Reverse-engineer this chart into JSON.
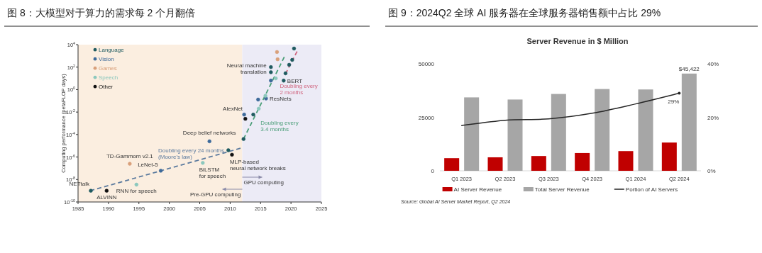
{
  "chart_data": [
    {
      "type": "scatter",
      "title": "图 8：大模型对于算力的需求每 2 个月翻倍",
      "ylabel": "Computing performance (petaFLOP days)",
      "log": "y",
      "legend": "top left",
      "marker": "circle",
      "xlim": [
        1985,
        2025
      ],
      "xticks": [
        1985,
        1990,
        1995,
        2000,
        2005,
        2010,
        2015,
        2020,
        2025
      ],
      "ylim": [
        1e-10,
        10000
      ],
      "yticks": [
        {
          "value": 1e-10,
          "label": "10$^{-10}$"
        },
        {
          "value": 1e-08,
          "label": "10$^{-8}$"
        },
        {
          "value": 1e-06,
          "label": "10$^{-6}$"
        },
        {
          "value": 0.0001,
          "label": "10$^{-4}$"
        },
        {
          "value": 0.01,
          "label": "10$^{-2}$"
        },
        {
          "value": 1,
          "label": "10$^{0}$"
        },
        {
          "value": 100,
          "label": "10$^{2}$"
        },
        {
          "value": 10000,
          "label": "10$^{4}$"
        }
      ],
      "bands": [
        {
          "axis": "x",
          "from": 1985,
          "to": 2012,
          "label": "Pre-GPU computing",
          "color": "#fbeee0"
        },
        {
          "axis": "x",
          "from": 2012,
          "to": 2025,
          "label": "GPU computing",
          "color": "#ecebf6"
        }
      ],
      "series": [
        {
          "name": "Language",
          "color": "#1f5a5f",
          "x": [
            1987.1,
            2009.7,
            2012.2,
            2013.8,
            2016.7,
            2016.7,
            2020.5,
            2020.2,
            2019.7,
            2019.1,
            2018.8
          ],
          "values": [
            1e-09,
            4e-06,
            4e-05,
            0.006,
            100,
            35,
            4500,
            440,
            160,
            28,
            6.3
          ]
        },
        {
          "name": "Vision",
          "color": "#3d6a9a",
          "x": [
            1998.6,
            2006.6,
            2012.3,
            2014.6,
            2015.9,
            2016.7
          ],
          "values": [
            6e-08,
            2.5e-05,
            0.006,
            0.13,
            0.16,
            6.3
          ]
        },
        {
          "name": "Games",
          "color": "#d9a07a",
          "x": [
            1993.5,
            2017.8,
            2017.7
          ],
          "values": [
            2.5e-07,
            500,
            2200
          ]
        },
        {
          "name": "Speech",
          "color": "#8cc8bd",
          "x": [
            1994.6,
            2005.5,
            2014.7,
            2015.8,
            2017.5
          ],
          "values": [
            3.5e-09,
            3e-07,
            0.02,
            0.28,
            10
          ]
        },
        {
          "name": "Other",
          "color": "#111111",
          "x": [
            1989.7,
            2010.3,
            2012.5
          ],
          "values": [
            1e-09,
            1.6e-06,
            0.0025
          ]
        },
        {
          "name": "Doubling every 24 months (Moore's law)",
          "type": "line",
          "line_style": "dashed",
          "marker": "none",
          "color": "#5b7a9e",
          "x": [
            1987,
            2011.7
          ],
          "values": [
            1e-09,
            6e-06
          ]
        },
        {
          "name": "Doubling every 3.4 months",
          "type": "line",
          "line_style": "dashed",
          "marker": "none",
          "color": "#4a9e78",
          "x": [
            2012.2,
            2018.9
          ],
          "values": [
            4e-05,
            800
          ]
        },
        {
          "name": "Doubling every 2 months",
          "type": "line",
          "line_style": "dashed",
          "marker": "none",
          "color": "#d0647e",
          "x": [
            2019.1,
            2021
          ],
          "values": [
            25,
            2500
          ]
        }
      ],
      "annotations": [
        {
          "text": "NETtalk",
          "x": 1987.1,
          "y": 1e-09
        },
        {
          "text": "ALVINN",
          "x": 1989.7,
          "y": 1e-09
        },
        {
          "text": "RNN for speech",
          "x": 1994.6,
          "y": 3.5e-09
        },
        {
          "text": "TD-Gammom v2.1",
          "x": 1993.5,
          "y": 2.5e-07
        },
        {
          "text": "LeNet-5",
          "x": 1998.6,
          "y": 6e-08
        },
        {
          "text": "Deep belief networks",
          "x": 2006.6,
          "y": 2.5e-05
        },
        {
          "text": "BiLSTM for speech",
          "x": 2005.5,
          "y": 3e-07
        },
        {
          "text": "MLP-based neural network breaks",
          "x": 2010.3,
          "y": 1.6e-06
        },
        {
          "text": "AlexNet",
          "x": 2012.3,
          "y": 0.006
        },
        {
          "text": "ResNets",
          "x": 2015.9,
          "y": 0.16
        },
        {
          "text": "Neural machine translation",
          "x": 2016.7,
          "y": 100
        },
        {
          "text": "BERT",
          "x": 2018.8,
          "y": 6.3
        }
      ]
    },
    {
      "type": "bar",
      "title": "图 9：2024Q2 全球 AI 服务器在全球服务器销售额中占比 29%",
      "subtitle": "Server Revenue in $ Million",
      "legend": "bottom",
      "categories": [
        "Q1 2023",
        "Q2 2023",
        "Q3 2023",
        "Q4 2023",
        "Q1 2024",
        "Q2 2024"
      ],
      "ylim": [
        0,
        50000
      ],
      "yticks": [
        0,
        25000,
        50000
      ],
      "y2lim": [
        0,
        40
      ],
      "y2ticks": [
        {
          "value": 0,
          "label": "0%"
        },
        {
          "value": 20,
          "label": "20%"
        },
        {
          "value": 40,
          "label": "40%"
        }
      ],
      "series": [
        {
          "name": "AI Server Revenue",
          "color": "#c00000",
          "values": [
            5900,
            6300,
            6900,
            8300,
            9200,
            13200
          ]
        },
        {
          "name": "Total Server Revenue",
          "color": "#a6a6a6",
          "values": [
            34300,
            33300,
            35900,
            38200,
            38000,
            45422
          ],
          "value_labels": [
            null,
            null,
            null,
            null,
            null,
            "$45,422"
          ]
        },
        {
          "name": "Portion of AI Servers",
          "type": "line",
          "axis": "y2",
          "color": "#262626",
          "values": [
            16.9,
            18.9,
            19.4,
            21.5,
            25.0,
            29
          ],
          "value_labels": [
            null,
            null,
            null,
            null,
            null,
            "29%"
          ]
        }
      ],
      "annotations": [
        "Source: Global AI Server Market Report, Q2 2024"
      ]
    }
  ]
}
